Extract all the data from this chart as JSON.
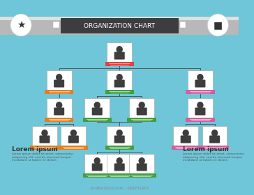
{
  "bg_color": "#6ec6d8",
  "title": "ORGANIZATION CHART",
  "title_bg": "#3d3d3d",
  "banner_color": "#c8c8c8",
  "card_bg": "#ffffff",
  "card_border": "#cccccc",
  "line_color": "#555555",
  "person_color": "#3d3d3d",
  "tab_colors": {
    "red": "#e04040",
    "orange": "#e08020",
    "green": "#40a040",
    "pink": "#d060a0"
  },
  "lorem_text": "Lorem ipsum",
  "lorem_sub": "Lorem ipsum dolor sit amet, consectetur\nadipiscing elit, sed do eiusmod tempor\nincididunt ut labore et dolore.",
  "watermark": "shutterstock.com · 668751901"
}
